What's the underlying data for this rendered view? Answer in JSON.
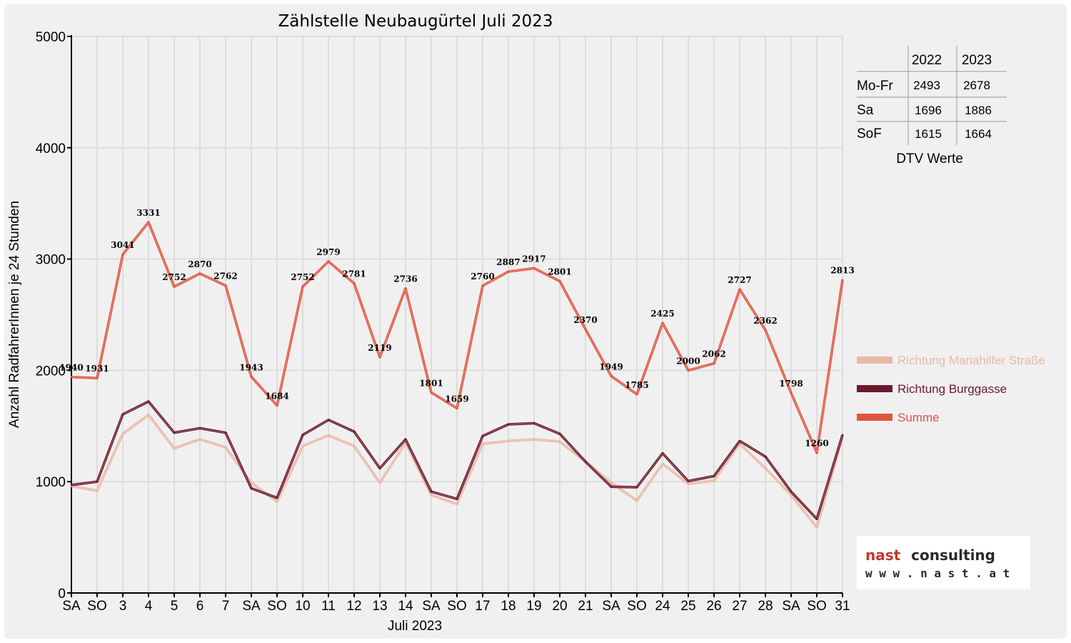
{
  "chart_data": {
    "type": "line",
    "title": "Zählstelle Neubaugürtel Juli 2023",
    "xlabel": "Juli 2023",
    "ylabel": "Anzahl RadfahrerInnen je 24 Stunden",
    "ylim": [
      0,
      5000
    ],
    "yticks": [
      "0",
      "1000",
      "2000",
      "3000",
      "4000",
      "5000"
    ],
    "grid": true,
    "legend_position": "right",
    "categories": [
      "SA",
      "SO",
      "3",
      "4",
      "5",
      "6",
      "7",
      "SA",
      "SO",
      "10",
      "11",
      "12",
      "13",
      "14",
      "SA",
      "SO",
      "17",
      "18",
      "19",
      "20",
      "21",
      "SA",
      "SO",
      "24",
      "25",
      "26",
      "27",
      "28",
      "SA",
      "SO",
      "31"
    ],
    "weekend_colors": {
      "SA": "#000000",
      "SO": "#e00000"
    },
    "series": [
      {
        "name": "Richtung Mariahilfer Straße",
        "color": "#e8b8a6",
        "values": [
          960,
          920,
          1430,
          1600,
          1300,
          1380,
          1310,
          990,
          820,
          1320,
          1415,
          1320,
          990,
          1350,
          880,
          800,
          1340,
          1365,
          1380,
          1360,
          1180,
          990,
          830,
          1160,
          980,
          1010,
          1340,
          1120,
          880,
          590,
          1400
        ]
      },
      {
        "name": "Richtung Burggasse",
        "color": "#6b1a2e",
        "values": [
          970,
          1000,
          1605,
          1720,
          1440,
          1480,
          1440,
          940,
          855,
          1420,
          1555,
          1450,
          1120,
          1380,
          910,
          845,
          1410,
          1515,
          1525,
          1430,
          1180,
          955,
          950,
          1255,
          1005,
          1050,
          1365,
          1225,
          910,
          665,
          1420
        ]
      },
      {
        "name": "Summe",
        "color": "#e05440",
        "values": [
          1940,
          1931,
          3041,
          3331,
          2752,
          2870,
          2762,
          1943,
          1684,
          2752,
          2979,
          2781,
          2119,
          2736,
          1801,
          1659,
          2760,
          2887,
          2917,
          2801,
          2370,
          1949,
          1785,
          2425,
          2000,
          2062,
          2727,
          2362,
          1798,
          1260,
          2813
        ]
      }
    ],
    "data_labels": [
      "1940",
      "1931",
      "3041",
      "3331",
      "2752",
      "2870",
      "2762",
      "1943",
      "1684",
      "2752",
      "2979",
      "2781",
      "2119",
      "2736",
      "1801",
      "1659",
      "2760",
      "2887",
      "2917",
      "2801",
      "2370",
      "1949",
      "1785",
      "2425",
      "2000",
      "2062",
      "2727",
      "2362",
      "1798",
      "1260",
      "2813"
    ]
  },
  "dtv_table": {
    "headers": [
      "",
      "2022",
      "2023"
    ],
    "rows": [
      {
        "label": "Mo-Fr",
        "v2022": "2493",
        "v2023": "2678"
      },
      {
        "label": "Sa",
        "v2022": "1696",
        "v2023": "1886"
      },
      {
        "label": "SoF",
        "v2022": "1615",
        "v2023": "1664"
      }
    ],
    "caption": "DTV Werte"
  },
  "logo": {
    "line1_a": "nast",
    "line1_b": "consulting",
    "line2": "w w w . n a s t . a t",
    "color_a": "#c0392b",
    "color_b": "#2a2a2a"
  }
}
